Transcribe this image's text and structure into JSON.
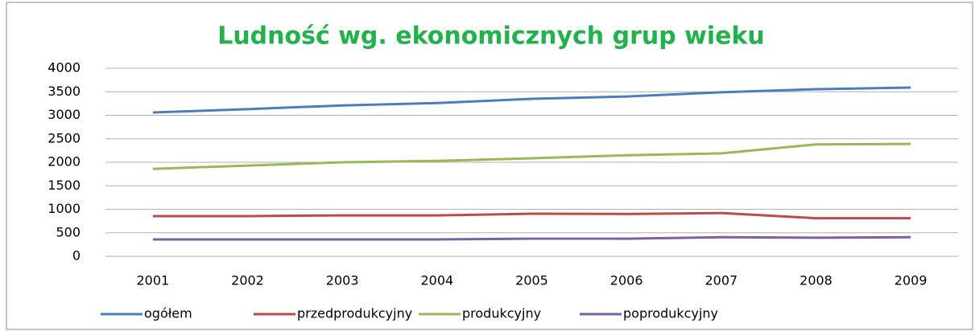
{
  "chart_data": {
    "type": "line",
    "title": "Ludność wg. ekonomicznych grup wieku",
    "categories": [
      "2001",
      "2002",
      "2003",
      "2004",
      "2005",
      "2006",
      "2007",
      "2008",
      "2009"
    ],
    "series": [
      {
        "name": "ogółem",
        "color": "#4a7ebb",
        "values": [
          3060,
          3130,
          3210,
          3260,
          3350,
          3400,
          3490,
          3555,
          3590
        ]
      },
      {
        "name": "przedprodukcyjny",
        "color": "#be4b48",
        "values": [
          855,
          855,
          870,
          870,
          905,
          900,
          920,
          810,
          810
        ]
      },
      {
        "name": "produkcyjny",
        "color": "#98b954",
        "values": [
          1860,
          1930,
          2000,
          2030,
          2085,
          2150,
          2190,
          2380,
          2390
        ]
      },
      {
        "name": "poprodukcyjny",
        "color": "#7d60a0",
        "values": [
          360,
          360,
          360,
          360,
          375,
          375,
          405,
          395,
          405
        ]
      }
    ],
    "ylim": [
      0,
      4000
    ],
    "yticks": [
      0,
      500,
      1000,
      1500,
      2000,
      2500,
      3000,
      3500,
      4000
    ],
    "grid": true,
    "legend": "bottom"
  }
}
